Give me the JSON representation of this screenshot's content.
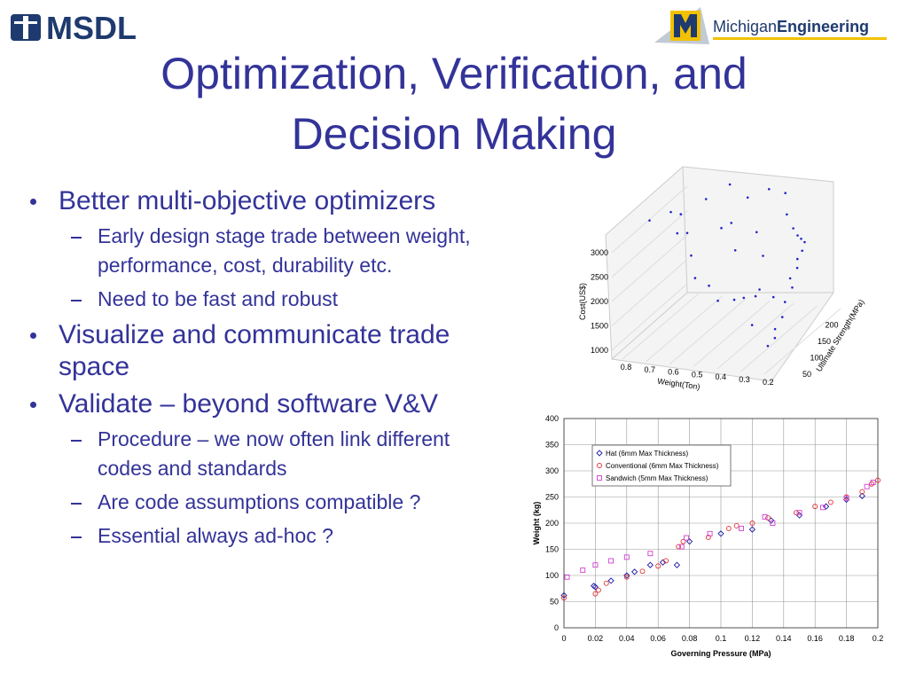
{
  "header": {
    "left_logo": "MSDL",
    "right_logo_light": "Michigan",
    "right_logo_bold": "Engineering"
  },
  "title": [
    "Optimization, Verification, and",
    "Decision Making"
  ],
  "bullets": [
    {
      "text": "Better multi-objective optimizers",
      "sub": [
        "Early design stage trade between weight, performance, cost, durability etc.",
        "Need to be fast and robust"
      ]
    },
    {
      "text": "Visualize and communicate trade space",
      "sub": []
    },
    {
      "text": "Validate – beyond software V&V",
      "sub": [
        "Procedure – we now often link different codes and standards",
        "Are code assumptions compatible ?",
        "Essential always ad-hoc ?"
      ]
    }
  ],
  "chart_data": [
    {
      "type": "scatter3d",
      "xlabel": "Weight(Ton)",
      "ylabel": "Ultimate Strength(MPa)",
      "zlabel": "Cost(US$)",
      "color": "#2222cc",
      "xticks": [
        0.8,
        0.7,
        0.6,
        0.5,
        0.4,
        0.3,
        0.2
      ],
      "yticks": [
        50,
        100,
        150,
        200
      ],
      "zticks": [
        1000,
        1500,
        2000,
        2500,
        3000
      ],
      "x": [
        0.75,
        0.7,
        0.65,
        0.6,
        0.55,
        0.5,
        0.45,
        0.4,
        0.35,
        0.3,
        0.25,
        0.22,
        0.21,
        0.2,
        0.2,
        0.21,
        0.2,
        0.22,
        0.2,
        0.21,
        0.2,
        0.21,
        0.2,
        0.22,
        0.6,
        0.55,
        0.5,
        0.45,
        0.4,
        0.38,
        0.35,
        0.3,
        0.65,
        0.7,
        0.45,
        0.35,
        0.3,
        0.25,
        0.5,
        0.4
      ],
      "y": [
        60,
        100,
        80,
        150,
        200,
        120,
        180,
        220,
        240,
        200,
        180,
        170,
        175,
        180,
        170,
        160,
        150,
        140,
        130,
        110,
        90,
        70,
        60,
        50,
        90,
        60,
        70,
        60,
        80,
        100,
        120,
        60,
        120,
        140,
        130,
        150,
        90,
        100,
        160,
        170
      ],
      "z": [
        3250,
        3150,
        2900,
        3100,
        3050,
        2800,
        3000,
        2900,
        2700,
        2600,
        2500,
        2450,
        2350,
        2250,
        2150,
        2050,
        1950,
        1800,
        1700,
        1550,
        1400,
        1300,
        1200,
        1100,
        2400,
        2200,
        2000,
        1800,
        1700,
        1600,
        1500,
        1400,
        2600,
        2800,
        2300,
        2100,
        1900,
        1700,
        2600,
        2400
      ]
    },
    {
      "type": "scatter",
      "xlabel": "Governing Pressure (MPa)",
      "ylabel": "Weight (kg)",
      "xlim": [
        0,
        0.2
      ],
      "ylim": [
        0,
        400
      ],
      "xticks": [
        0,
        0.02,
        0.04,
        0.06,
        0.08,
        0.1,
        0.12,
        0.14,
        0.16,
        0.18,
        0.2
      ],
      "yticks": [
        0,
        50,
        100,
        150,
        200,
        250,
        300,
        350,
        400
      ],
      "grid": true,
      "legend": "upper left",
      "series": [
        {
          "name": "Hat (6mm Max Thickness)",
          "color": "#1a1aa6",
          "marker": "diamond",
          "x": [
            0,
            0.019,
            0.02,
            0.03,
            0.04,
            0.045,
            0.055,
            0.063,
            0.072,
            0.08,
            0.1,
            0.12,
            0.132,
            0.15,
            0.167,
            0.18,
            0.19
          ],
          "values": [
            62,
            80,
            78,
            90,
            100,
            107,
            120,
            125,
            120,
            165,
            180,
            188,
            205,
            215,
            232,
            245,
            252
          ]
        },
        {
          "name": "Conventional (6mm Max Thickness)",
          "color": "#e03030",
          "marker": "circle",
          "x": [
            0,
            0.02,
            0.022,
            0.027,
            0.04,
            0.05,
            0.06,
            0.065,
            0.073,
            0.076,
            0.092,
            0.105,
            0.11,
            0.12,
            0.13,
            0.148,
            0.16,
            0.17,
            0.18,
            0.19,
            0.196,
            0.2
          ],
          "values": [
            57,
            65,
            72,
            85,
            97,
            108,
            118,
            128,
            155,
            165,
            173,
            190,
            195,
            200,
            210,
            220,
            232,
            240,
            250,
            260,
            275,
            282
          ]
        },
        {
          "name": "Sandwich (5mm Max Thickness)",
          "color": "#d040d0",
          "marker": "square",
          "x": [
            0.002,
            0.012,
            0.02,
            0.03,
            0.04,
            0.055,
            0.075,
            0.078,
            0.093,
            0.113,
            0.128,
            0.133,
            0.15,
            0.165,
            0.18,
            0.193,
            0.197
          ],
          "values": [
            97,
            110,
            120,
            128,
            135,
            142,
            155,
            172,
            180,
            190,
            212,
            200,
            220,
            230,
            248,
            270,
            278
          ]
        }
      ]
    }
  ]
}
